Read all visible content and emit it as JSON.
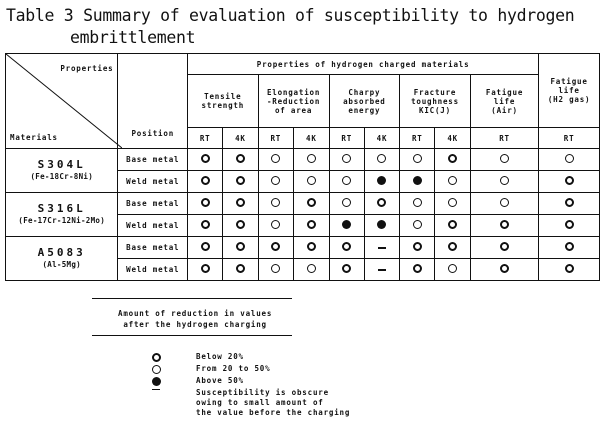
{
  "title": {
    "line1": "Table 3  Summary of evaluation of susceptibility to hydrogen",
    "line2": "embrittlement"
  },
  "table": {
    "group_header": "Properties of hydrogen charged materials",
    "corner_properties": "Properties",
    "corner_materials": "Materials",
    "position_header": "Position",
    "properties": [
      {
        "label": "Tensile strength",
        "lines": [
          "Tensile",
          "strength"
        ]
      },
      {
        "label": "Elongation -Reduction of area",
        "lines": [
          "Elongation",
          "-Reduction",
          "of area"
        ]
      },
      {
        "label": "Charpy absorbed energy",
        "lines": [
          "Charpy",
          "absorbed",
          "energy"
        ]
      },
      {
        "label": "Fracture toughness KIC(J)",
        "lines": [
          "Fracture",
          "toughness",
          "KIC(J)"
        ]
      },
      {
        "label": "Fatigue life (Air)",
        "lines": [
          "Fatigue",
          "life",
          "(Air)"
        ]
      }
    ],
    "last_property": {
      "label": "Fatigue life (H2 gas)",
      "lines": [
        "Fatigue",
        "life",
        "(H2 gas)"
      ]
    },
    "conditions": [
      "RT",
      "4K",
      "RT",
      "4K",
      "RT",
      "4K",
      "RT",
      "4K",
      "RT",
      "RT"
    ],
    "materials": [
      {
        "name": "S304L",
        "composition": "(Fe-18Cr-8Ni)",
        "rows": [
          {
            "position": "Base metal",
            "values": [
              "below",
              "below",
              "from",
              "from",
              "from",
              "from",
              "from",
              "below",
              "from",
              "from"
            ]
          },
          {
            "position": "Weld metal",
            "values": [
              "below",
              "below",
              "from",
              "from",
              "from",
              "above",
              "above",
              "from",
              "from",
              "below"
            ]
          }
        ]
      },
      {
        "name": "S316L",
        "composition": "(Fe-17Cr-12Ni-2Mo)",
        "rows": [
          {
            "position": "Base metal",
            "values": [
              "below",
              "below",
              "from",
              "below",
              "from",
              "below",
              "from",
              "from",
              "from",
              "below"
            ]
          },
          {
            "position": "Weld metal",
            "values": [
              "below",
              "below",
              "from",
              "below",
              "above",
              "above",
              "from",
              "below",
              "below",
              "below"
            ]
          }
        ]
      },
      {
        "name": "A5083",
        "composition": "(Al-5Mg)",
        "rows": [
          {
            "position": "Base metal",
            "values": [
              "below",
              "below",
              "below",
              "below",
              "below",
              "dash",
              "below",
              "below",
              "below",
              "below"
            ]
          },
          {
            "position": "Weld metal",
            "values": [
              "below",
              "below",
              "from",
              "from",
              "below",
              "dash",
              "below",
              "from",
              "below",
              "below"
            ]
          }
        ]
      }
    ]
  },
  "legend": {
    "heading_line1": "Amount of reduction in values",
    "heading_line2": "after the hydrogen charging",
    "items": [
      {
        "symbol": "below",
        "text": "Below 20%"
      },
      {
        "symbol": "from",
        "text": "From 20 to 50%"
      },
      {
        "symbol": "above",
        "text": "Above 50%"
      },
      {
        "symbol": "dash",
        "text": "Susceptibility is obscure",
        "text2": "owing to small amount of",
        "text3": "the value before the charging"
      }
    ]
  }
}
